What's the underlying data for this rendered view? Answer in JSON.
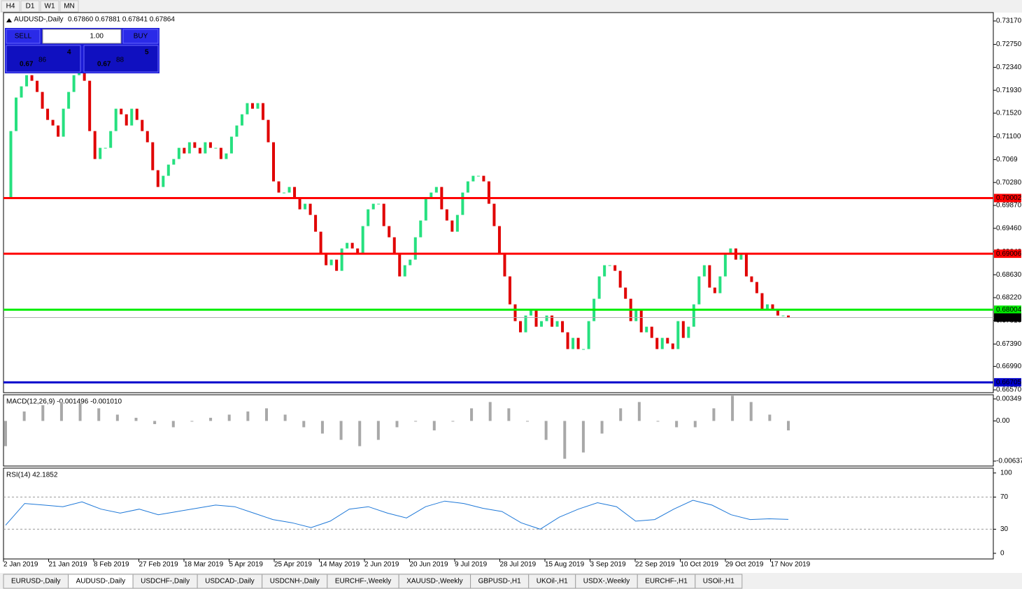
{
  "toolbar": {
    "timeframes": [
      "H4",
      "D1",
      "W1",
      "MN"
    ]
  },
  "trade_panel": {
    "sell": "SELL",
    "buy": "BUY",
    "lot": "1.00",
    "bid": {
      "big": "0.67",
      "main": "86",
      "small": "4"
    },
    "ask": {
      "big": "0.67",
      "main": "88",
      "small": "5"
    }
  },
  "tabs": {
    "items": [
      "EURUSD-,Daily",
      "AUDUSD-,Daily",
      "USDCHF-,Daily",
      "USDCAD-,Daily",
      "USDCNH-,Daily",
      "EURCHF-,Weekly",
      "XAUUSD-,Weekly",
      "GBPUSD-,H1",
      "UKOil-,H1",
      "USDX-,Weekly",
      "EURCHF-,H1",
      "USOil-,H1"
    ],
    "active": "AUDUSD-,Daily"
  },
  "chart_data": [
    {
      "type": "candlestick",
      "title": "AUDUSD-,Daily",
      "subtitle": "0.67860 0.67881 0.67841 0.67864",
      "up_color": "#26e07f",
      "down_color": "#e00000",
      "ylim": [
        0.6652,
        0.7332
      ],
      "yticks": [
        {
          "value": 0.7317,
          "label": "0.73170"
        },
        {
          "value": 0.7275,
          "label": "0.72750"
        },
        {
          "value": 0.7234,
          "label": "0.72340"
        },
        {
          "value": 0.7193,
          "label": "0.71930"
        },
        {
          "value": 0.7152,
          "label": "0.71520"
        },
        {
          "value": 0.711,
          "label": "0.71100"
        },
        0.7069,
        {
          "value": 0.7028,
          "label": "0.70280"
        },
        {
          "value": 0.6987,
          "label": "0.69870"
        },
        {
          "value": 0.6946,
          "label": "0.69460"
        },
        {
          "value": 0.6904,
          "label": "0.69040"
        },
        {
          "value": 0.6863,
          "label": "0.68630"
        },
        {
          "value": 0.6822,
          "label": "0.68220"
        },
        {
          "value": 0.6781,
          "label": "0.67810"
        },
        {
          "value": 0.6739,
          "label": "0.67390"
        },
        {
          "value": 0.6699,
          "label": "0.66990"
        },
        {
          "value": 0.6657,
          "label": "0.66570"
        }
      ],
      "x_labels": [
        "2 Jan 2019",
        "21 Jan 2019",
        "8 Feb 2019",
        "27 Feb 2019",
        "18 Mar 2019",
        "5 Apr 2019",
        "25 Apr 2019",
        "14 May 2019",
        "2 Jun 2019",
        "20 Jun 2019",
        "9 Jul 2019",
        "28 Jul 2019",
        "15 Aug 2019",
        "3 Sep 2019",
        "22 Sep 2019",
        "10 Oct 2019",
        "29 Oct 2019",
        "17 Nov 2019"
      ],
      "levels": [
        {
          "value": 0.70002,
          "color": "#ff0000"
        },
        {
          "value": 0.69006,
          "color": "#ff0000"
        },
        {
          "value": 0.68004,
          "color": "#00ee00"
        },
        {
          "value": 0.66705,
          "color": "#0000cc"
        },
        {
          "value": 0.67864,
          "color": "#000000"
        }
      ],
      "closes": [
        0.7,
        0.712,
        0.718,
        0.72,
        0.722,
        0.721,
        0.719,
        0.716,
        0.714,
        0.713,
        0.711,
        0.716,
        0.719,
        0.722,
        0.724,
        0.721,
        0.712,
        0.707,
        0.709,
        0.709,
        0.712,
        0.716,
        0.715,
        0.713,
        0.716,
        0.714,
        0.712,
        0.71,
        0.705,
        0.702,
        0.704,
        0.706,
        0.707,
        0.709,
        0.708,
        0.71,
        0.709,
        0.708,
        0.71,
        0.709,
        0.709,
        0.707,
        0.708,
        0.711,
        0.713,
        0.715,
        0.717,
        0.716,
        0.717,
        0.714,
        0.71,
        0.703,
        0.701,
        0.701,
        0.702,
        0.7,
        0.698,
        0.699,
        0.697,
        0.694,
        0.69,
        0.688,
        0.689,
        0.687,
        0.691,
        0.692,
        0.691,
        0.69,
        0.695,
        0.698,
        0.699,
        0.699,
        0.695,
        0.693,
        0.69,
        0.686,
        0.688,
        0.689,
        0.693,
        0.696,
        0.7,
        0.701,
        0.702,
        0.698,
        0.696,
        0.694,
        0.697,
        0.701,
        0.703,
        0.704,
        0.704,
        0.703,
        0.699,
        0.695,
        0.69,
        0.686,
        0.681,
        0.678,
        0.676,
        0.679,
        0.68,
        0.677,
        0.678,
        0.679,
        0.677,
        0.678,
        0.676,
        0.673,
        0.675,
        0.673,
        0.673,
        0.678,
        0.682,
        0.686,
        0.688,
        0.688,
        0.687,
        0.684,
        0.682,
        0.678,
        0.68,
        0.676,
        0.677,
        0.675,
        0.673,
        0.675,
        0.674,
        0.673,
        0.678,
        0.675,
        0.677,
        0.681,
        0.686,
        0.688,
        0.684,
        0.683,
        0.686,
        0.69,
        0.691,
        0.689,
        0.69,
        0.686,
        0.685,
        0.683,
        0.68,
        0.681,
        0.68,
        0.679,
        0.679,
        0.67864
      ]
    },
    {
      "type": "bar",
      "title": "MACD(12,26,9) -0.001496 -0.001010",
      "color": "#a8a8a8",
      "ylim": [
        -0.00715,
        0.00415
      ],
      "yticks": [
        0.00349,
        {
          "value": 0,
          "label": "0.00"
        },
        -0.00637
      ],
      "values": [
        -0.004,
        0.0015,
        0.0025,
        0.003,
        0.0028,
        0.002,
        0.001,
        0.0005,
        -0.0005,
        -0.001,
        0.0,
        0.0005,
        0.001,
        0.0015,
        0.002,
        0.001,
        -0.001,
        -0.002,
        -0.003,
        -0.004,
        -0.003,
        -0.001,
        0.0,
        -0.0015,
        0.0,
        0.002,
        0.003,
        0.002,
        0.0,
        -0.003,
        -0.006,
        -0.005,
        -0.002,
        0.002,
        0.003,
        0.0,
        -0.001,
        -0.001,
        0.002,
        0.004,
        0.003,
        0.001,
        -0.0015
      ]
    },
    {
      "type": "line",
      "title": "RSI(14) 42.1852",
      "color": "#1e78d8",
      "ylim": [
        -7,
        106
      ],
      "yticks": [
        100,
        70,
        30,
        0
      ],
      "values": [
        35,
        62,
        60,
        58,
        64,
        55,
        50,
        55,
        48,
        52,
        56,
        60,
        58,
        50,
        42,
        38,
        32,
        40,
        55,
        58,
        50,
        44,
        58,
        65,
        62,
        56,
        52,
        38,
        30,
        45,
        55,
        63,
        58,
        40,
        42,
        55,
        66,
        60,
        48,
        42,
        43,
        42.1852
      ]
    }
  ]
}
